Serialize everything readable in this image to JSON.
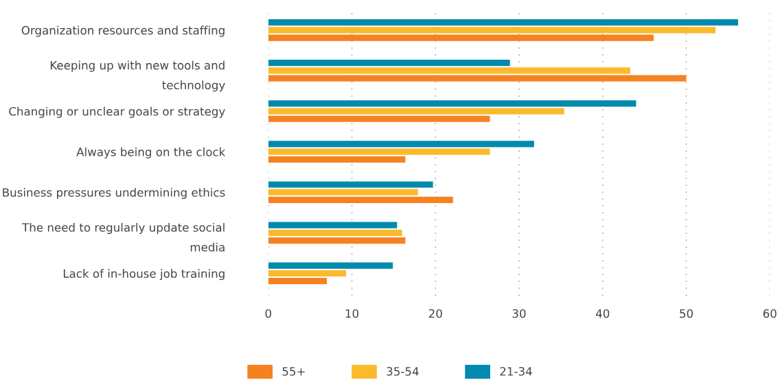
{
  "chart_data": {
    "type": "bar",
    "orientation": "horizontal",
    "categories": [
      "Organization resources and staffing",
      "Keeping up with new tools and\ntechnology",
      "Changing or unclear goals or strategy",
      "Always being on the clock",
      "Business pressures undermining ethics",
      "The need to regularly update social\nmedia",
      "Lack of in-house job training"
    ],
    "series": [
      {
        "name": "55+",
        "color": "#f58220",
        "values": [
          46.1,
          50.0,
          26.5,
          16.4,
          22.1,
          16.4,
          7.0
        ]
      },
      {
        "name": "35-54",
        "color": "#fbba2c",
        "values": [
          53.5,
          43.3,
          35.4,
          26.5,
          17.9,
          16.0,
          9.3
        ]
      },
      {
        "name": "21-34",
        "color": "#008aad",
        "values": [
          56.2,
          28.9,
          44.0,
          31.8,
          19.7,
          15.4,
          14.9
        ]
      }
    ],
    "xlim": [
      0,
      60
    ],
    "xticks": [
      0,
      10,
      20,
      30,
      40,
      50,
      60
    ],
    "grid": "x",
    "legend": "bottom"
  }
}
